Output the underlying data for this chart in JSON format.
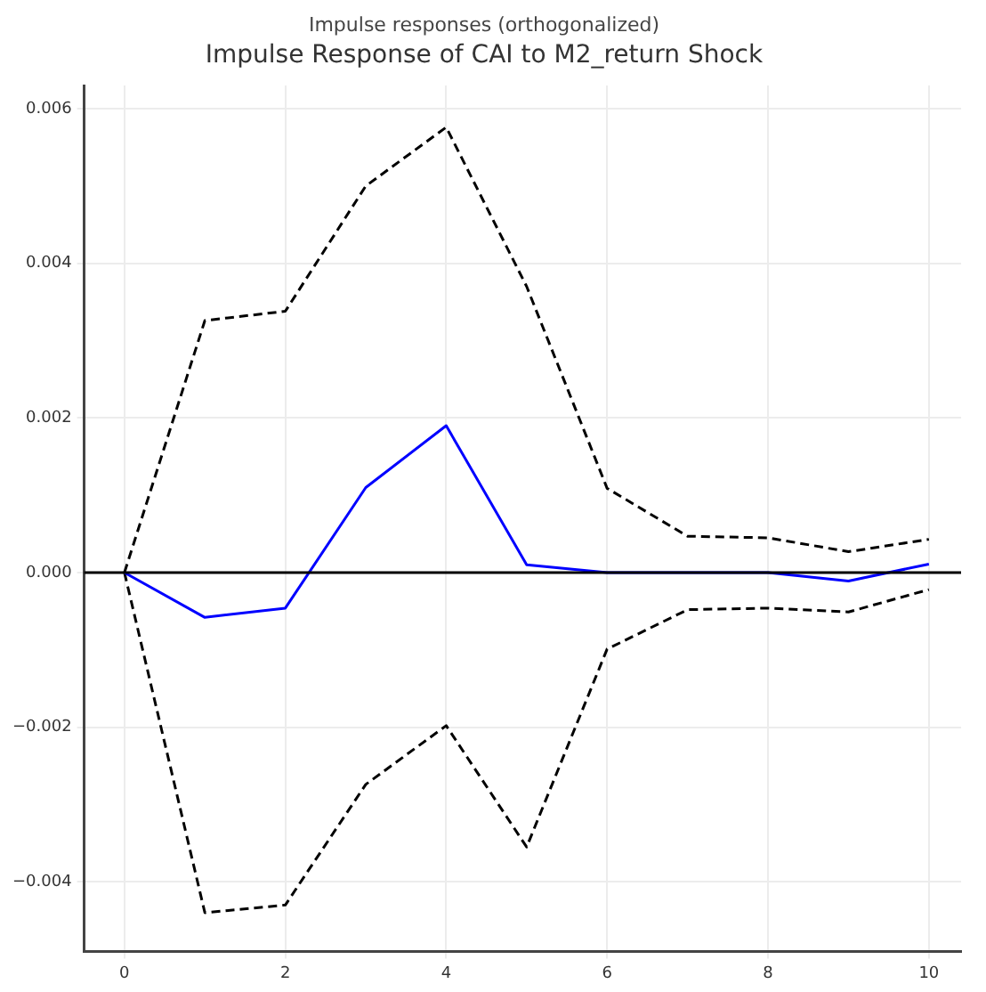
{
  "chart_data": {
    "type": "line",
    "title": "Impulse Response of CAI to M2_return Shock",
    "subtitle": "Impulse responses (orthogonalized)",
    "x": [
      0,
      1,
      2,
      3,
      4,
      5,
      6,
      7,
      8,
      9,
      10
    ],
    "series": [
      {
        "color": "#0000ff",
        "line_style": "solid",
        "values": [
          0,
          -0.00058,
          -0.00046,
          0.0011,
          0.0019,
          0.0001,
          0,
          0,
          0,
          -0.00011,
          0.00011
        ]
      },
      {
        "color": "#000000",
        "line_style": "dashed",
        "values": [
          0,
          0.00326,
          0.00338,
          0.005,
          0.00576,
          0.0037,
          0.00109,
          0.00047,
          0.00045,
          0.00027,
          0.00043
        ]
      },
      {
        "color": "#000000",
        "line_style": "dashed",
        "values": [
          0,
          -0.0044,
          -0.0043,
          -0.00274,
          -0.00198,
          -0.00355,
          -0.00099,
          -0.00048,
          -0.00046,
          -0.00051,
          -0.00022
        ]
      }
    ],
    "xlim": [
      -0.5,
      10.4
    ],
    "xticks": [
      0,
      2,
      4,
      6,
      8,
      10
    ],
    "ylim": [
      -0.0049,
      0.0063
    ],
    "yticks": [
      {
        "value": -0.004,
        "label": "−0.004"
      },
      {
        "value": -0.002,
        "label": "−0.002"
      },
      {
        "value": 0,
        "label": "0.000"
      },
      {
        "value": 0.002,
        "label": "0.002"
      },
      {
        "value": 0.004,
        "label": "0.004"
      },
      {
        "value": 0.006,
        "label": "0.006"
      }
    ],
    "ref_lines": [
      {
        "axis": "y",
        "value": 0,
        "color": "#000000",
        "line_style": "solid"
      }
    ],
    "grid": true,
    "legend": false,
    "marker": "none"
  }
}
